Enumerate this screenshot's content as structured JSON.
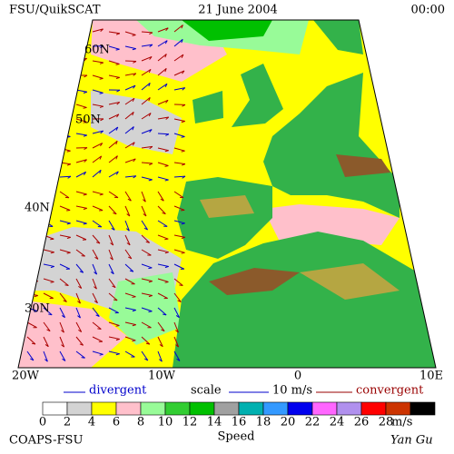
{
  "header": {
    "source": "FSU/QuikSCAT",
    "date": "21 June 2004",
    "time": "00:00"
  },
  "map": {
    "lat_labels": [
      "60N",
      "50N",
      "40N",
      "30N"
    ],
    "lon_labels": [
      "20W",
      "10W",
      "0",
      "10E"
    ]
  },
  "legend": {
    "divergent": "divergent",
    "scale": "scale",
    "scale_value": "10 m/s",
    "convergent": "convergent",
    "speed_bins": [
      0,
      2,
      4,
      6,
      8,
      10,
      12,
      14,
      16,
      18,
      20,
      22,
      24,
      26,
      28
    ],
    "colors": [
      "#ffffff",
      "#d3d3d3",
      "#ffff00",
      "#ffc0cb",
      "#98fb98",
      "#32cd32",
      "#00c000",
      "#a0a0a0",
      "#00b0b0",
      "#3399ff",
      "#0000ee",
      "#ff66ff",
      "#b090ee",
      "#ff0000",
      "#cc3300",
      "#000000"
    ],
    "unit": "m/s",
    "caption": "Speed"
  },
  "footer": {
    "credit": "COAPS-FSU",
    "author": "Yan Gu"
  }
}
